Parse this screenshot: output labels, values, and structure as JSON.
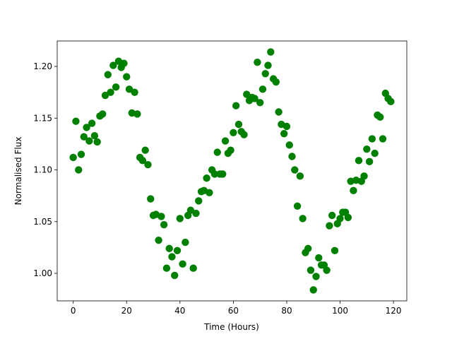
{
  "chart_data": {
    "type": "scatter",
    "x_label": "Time (Hours)",
    "y_label": "Normalised Flux",
    "xlim": [
      -6,
      125
    ],
    "ylim": [
      0.9734,
      1.2246
    ],
    "xticks": [
      0,
      20,
      40,
      60,
      80,
      100,
      120
    ],
    "yticks": [
      {
        "value": 1.0,
        "label": "1.00"
      },
      {
        "value": 1.05,
        "label": "1.05"
      },
      {
        "value": 1.1,
        "label": "1.10"
      },
      {
        "value": 1.15,
        "label": "1.15"
      },
      {
        "value": 1.2,
        "label": "1.20"
      }
    ],
    "grid": false,
    "series": [
      {
        "color": "#008000",
        "x": [
          0,
          1,
          2,
          3,
          4,
          5,
          6,
          7,
          8,
          9,
          10,
          11,
          12,
          13,
          14,
          15,
          16,
          17,
          18,
          19,
          20,
          21,
          22,
          23,
          24,
          25,
          26,
          27,
          28,
          29,
          30,
          31,
          32,
          33,
          34,
          35,
          36,
          37,
          38,
          39,
          40,
          41,
          42,
          43,
          44,
          45,
          46,
          47,
          48,
          49,
          50,
          51,
          52,
          53,
          54,
          55,
          56,
          57,
          58,
          59,
          60,
          61,
          62,
          63,
          64,
          65,
          66,
          67,
          68,
          69,
          70,
          71,
          72,
          73,
          74,
          75,
          76,
          77,
          78,
          79,
          80,
          81,
          82,
          83,
          84,
          85,
          86,
          87,
          88,
          89,
          90,
          91,
          92,
          93,
          94,
          95,
          96,
          97,
          98,
          99,
          100,
          101,
          102,
          103,
          104,
          105,
          106,
          107,
          108,
          109,
          110,
          111,
          112,
          113,
          114,
          115,
          116,
          117,
          118,
          119
        ],
        "values": [
          1.112,
          1.147,
          1.1,
          1.115,
          1.132,
          1.141,
          1.128,
          1.145,
          1.133,
          1.127,
          1.152,
          1.154,
          1.172,
          1.192,
          1.175,
          1.201,
          1.18,
          1.205,
          1.199,
          1.203,
          1.19,
          1.178,
          1.155,
          1.175,
          1.154,
          1.112,
          1.109,
          1.119,
          1.105,
          1.072,
          1.056,
          1.057,
          1.032,
          1.055,
          1.047,
          1.005,
          1.024,
          1.016,
          0.998,
          1.022,
          1.053,
          1.009,
          1.03,
          1.056,
          1.061,
          1.005,
          1.058,
          1.07,
          1.079,
          1.08,
          1.092,
          1.078,
          1.1,
          1.096,
          1.117,
          1.096,
          1.096,
          1.128,
          1.116,
          1.119,
          1.136,
          1.162,
          1.144,
          1.137,
          1.134,
          1.173,
          1.167,
          1.17,
          1.169,
          1.204,
          1.165,
          1.178,
          1.193,
          1.201,
          1.214,
          1.188,
          1.185,
          1.156,
          1.144,
          1.135,
          1.142,
          1.124,
          1.113,
          1.1,
          1.065,
          1.094,
          1.053,
          1.02,
          1.024,
          1.003,
          0.984,
          0.997,
          1.015,
          1.008,
          1.008,
          1.003,
          1.046,
          1.056,
          1.022,
          1.048,
          1.053,
          1.059,
          1.059,
          1.054,
          1.089,
          1.08,
          1.09,
          1.109,
          1.089,
          1.094,
          1.12,
          1.108,
          1.13,
          1.116,
          1.153,
          1.151,
          1.13,
          1.174,
          1.169,
          1.166
        ]
      }
    ]
  }
}
